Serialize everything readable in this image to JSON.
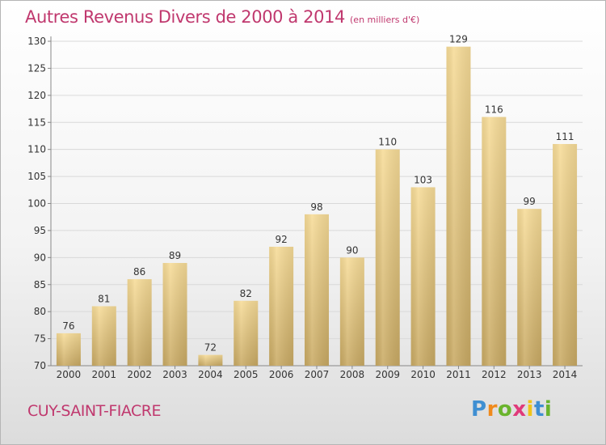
{
  "chart_data": {
    "type": "bar",
    "title": "Autres Revenus Divers de 2000 à 2014",
    "subtitle": "(en milliers d'€)",
    "categories": [
      "2000",
      "2001",
      "2002",
      "2003",
      "2004",
      "2005",
      "2006",
      "2007",
      "2008",
      "2009",
      "2010",
      "2011",
      "2012",
      "2013",
      "2014"
    ],
    "values": [
      76,
      81,
      86,
      89,
      72,
      82,
      92,
      98,
      90,
      110,
      103,
      129,
      116,
      99,
      111
    ],
    "ylim": [
      70,
      130
    ],
    "yticks": [
      70,
      75,
      80,
      85,
      90,
      95,
      100,
      105,
      110,
      115,
      120,
      125,
      130
    ],
    "grid": true,
    "bar_color_light": "#f7dc98",
    "bar_color_dark": "#c9aa64",
    "title_color": "#c0386e"
  },
  "commune": "CUY-SAINT-FIACRE",
  "logo": {
    "text": "Proxiti",
    "letters": [
      "P",
      "r",
      "o",
      "x",
      "i",
      "t",
      "i"
    ],
    "colors": [
      "#3f8fd2",
      "#f08a1c",
      "#6ab42d",
      "#e03a7a",
      "#f0c419",
      "#3f8fd2",
      "#6ab42d"
    ]
  }
}
